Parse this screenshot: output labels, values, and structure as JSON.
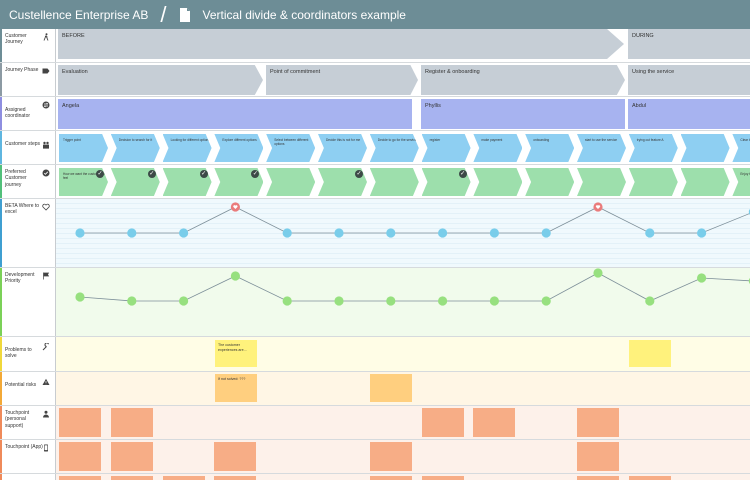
{
  "app": {
    "workspace": "Custellence Enterprise AB",
    "document_title": "Vertical divide & coordinators example"
  },
  "lanes": {
    "journey": "Customer Journey",
    "phase": "Journey Phase",
    "coordinator": "Assigned coordinator",
    "steps": "Customer steps",
    "preferred": "Preferred Customer journey",
    "excel": "BETA Where to excel",
    "priority": "Development Priority",
    "problems": "Problems to solve",
    "risks": "Potential risks",
    "personal": "Touchpoint (personal support)",
    "app": "Touchpoint (App)"
  },
  "journey": {
    "before": "BEFORE",
    "during": "DURING"
  },
  "phases": [
    "Evaluation",
    "Point of commitment",
    "Register & onboarding",
    "Using the service"
  ],
  "coordinators": [
    "Angela",
    "Phyllis",
    "Abdul"
  ],
  "steps": [
    "Trigger point",
    "Decision to search for it",
    "Looking for different options",
    "Explore different options",
    "Select between different options",
    "Decide this is not for me",
    "Decide to go for the service",
    "register",
    "make payment",
    "onboarding",
    "start to use the service",
    "trying out feature A",
    "",
    "Clear the f"
  ],
  "preferred": [
    "How we want the customer to feel",
    "Enjoy the"
  ],
  "problems": [
    "The customer experiences are..."
  ],
  "risks": [
    "If not solved: ???"
  ],
  "colors": {
    "topbar": "#6d8d96",
    "chev_gray": "#c6ced6",
    "chev_purple": "#a7b3f0",
    "chev_blue": "#8ecff2",
    "chev_green": "#9ddfac",
    "dot_blue": "#79cdea",
    "dot_green": "#97e07f",
    "dot_red": "#ea7c7c",
    "note_yellow": "#fff27c",
    "note_orange": "#ffcf7f",
    "tile_orange": "#f7ad86"
  },
  "icons": [
    "walking-person-icon",
    "label-tag-icon",
    "swap-icon",
    "people-icon",
    "check-circle-icon",
    "heart-icon",
    "flag-icon",
    "wrench-icon",
    "warning-icon",
    "person-icon",
    "phone-icon",
    "document-icon"
  ]
}
